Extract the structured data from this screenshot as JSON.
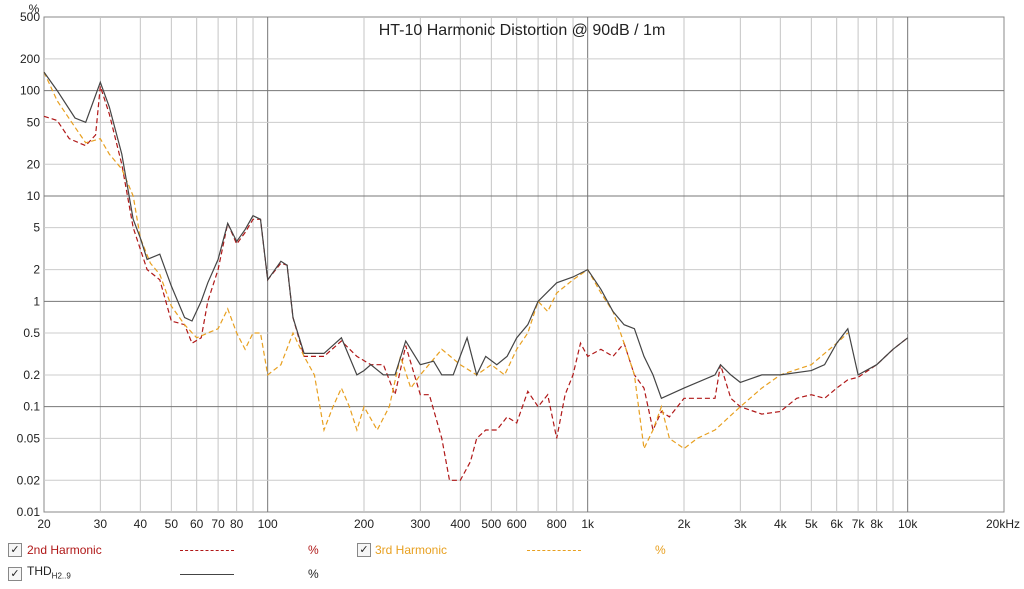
{
  "chart_data": {
    "type": "line",
    "title": "HT-10 Harmonic Distortion @ 90dB / 1m",
    "ylabel": "%",
    "xlabel": "",
    "x_scale": "log",
    "y_scale": "log",
    "xlim": [
      20,
      20000
    ],
    "ylim": [
      0.01,
      500
    ],
    "grid": true,
    "x_ticks": [
      {
        "v": 20,
        "label": "20"
      },
      {
        "v": 30,
        "label": "30"
      },
      {
        "v": 40,
        "label": "40"
      },
      {
        "v": 50,
        "label": "50"
      },
      {
        "v": 60,
        "label": "60"
      },
      {
        "v": 70,
        "label": "70"
      },
      {
        "v": 80,
        "label": "80"
      },
      {
        "v": 100,
        "label": "100"
      },
      {
        "v": 200,
        "label": "200"
      },
      {
        "v": 300,
        "label": "300"
      },
      {
        "v": 400,
        "label": "400"
      },
      {
        "v": 500,
        "label": "500"
      },
      {
        "v": 600,
        "label": "600"
      },
      {
        "v": 800,
        "label": "800"
      },
      {
        "v": 1000,
        "label": "1k"
      },
      {
        "v": 2000,
        "label": "2k"
      },
      {
        "v": 3000,
        "label": "3k"
      },
      {
        "v": 4000,
        "label": "4k"
      },
      {
        "v": 5000,
        "label": "5k"
      },
      {
        "v": 6000,
        "label": "6k"
      },
      {
        "v": 7000,
        "label": "7k"
      },
      {
        "v": 8000,
        "label": "8k"
      },
      {
        "v": 10000,
        "label": "10k"
      },
      {
        "v": 20000,
        "label": "20kHz"
      }
    ],
    "y_ticks": [
      {
        "v": 500,
        "label": "500"
      },
      {
        "v": 200,
        "label": "200"
      },
      {
        "v": 100,
        "label": "100"
      },
      {
        "v": 50,
        "label": "50"
      },
      {
        "v": 20,
        "label": "20"
      },
      {
        "v": 10,
        "label": "10"
      },
      {
        "v": 5,
        "label": "5"
      },
      {
        "v": 2,
        "label": "2"
      },
      {
        "v": 1,
        "label": "1"
      },
      {
        "v": 0.5,
        "label": "0.5"
      },
      {
        "v": 0.2,
        "label": "0.2"
      },
      {
        "v": 0.1,
        "label": "0.1"
      },
      {
        "v": 0.05,
        "label": "0.05"
      },
      {
        "v": 0.02,
        "label": "0.02"
      },
      {
        "v": 0.01,
        "label": "0.01"
      }
    ],
    "series": [
      {
        "name": "2nd Harmonic",
        "color": "#b01818",
        "dash": "5,3",
        "points": [
          [
            20,
            57
          ],
          [
            22,
            52
          ],
          [
            24,
            35
          ],
          [
            27,
            30
          ],
          [
            29,
            38
          ],
          [
            30,
            110
          ],
          [
            32,
            60
          ],
          [
            35,
            20
          ],
          [
            38,
            5
          ],
          [
            42,
            2.0
          ],
          [
            46,
            1.6
          ],
          [
            50,
            0.65
          ],
          [
            55,
            0.6
          ],
          [
            58,
            0.4
          ],
          [
            62,
            0.45
          ],
          [
            65,
            1.0
          ],
          [
            70,
            2.0
          ],
          [
            75,
            5.5
          ],
          [
            80,
            3.5
          ],
          [
            85,
            4.5
          ],
          [
            90,
            6.0
          ],
          [
            95,
            6.0
          ],
          [
            100,
            1.6
          ],
          [
            110,
            2.3
          ],
          [
            115,
            2.2
          ],
          [
            120,
            0.7
          ],
          [
            130,
            0.3
          ],
          [
            150,
            0.3
          ],
          [
            170,
            0.42
          ],
          [
            190,
            0.3
          ],
          [
            210,
            0.25
          ],
          [
            230,
            0.25
          ],
          [
            250,
            0.13
          ],
          [
            270,
            0.38
          ],
          [
            300,
            0.13
          ],
          [
            320,
            0.13
          ],
          [
            350,
            0.05
          ],
          [
            370,
            0.02
          ],
          [
            400,
            0.02
          ],
          [
            430,
            0.03
          ],
          [
            450,
            0.05
          ],
          [
            480,
            0.06
          ],
          [
            520,
            0.06
          ],
          [
            560,
            0.08
          ],
          [
            600,
            0.07
          ],
          [
            650,
            0.14
          ],
          [
            700,
            0.1
          ],
          [
            750,
            0.13
          ],
          [
            800,
            0.05
          ],
          [
            850,
            0.13
          ],
          [
            900,
            0.2
          ],
          [
            950,
            0.4
          ],
          [
            1000,
            0.3
          ],
          [
            1100,
            0.35
          ],
          [
            1200,
            0.3
          ],
          [
            1300,
            0.4
          ],
          [
            1400,
            0.2
          ],
          [
            1500,
            0.15
          ],
          [
            1600,
            0.06
          ],
          [
            1700,
            0.09
          ],
          [
            1800,
            0.08
          ],
          [
            2000,
            0.12
          ],
          [
            2500,
            0.12
          ],
          [
            2600,
            0.25
          ],
          [
            2800,
            0.12
          ],
          [
            3000,
            0.1
          ],
          [
            3500,
            0.085
          ],
          [
            4000,
            0.09
          ],
          [
            4500,
            0.12
          ],
          [
            5000,
            0.13
          ],
          [
            5500,
            0.12
          ],
          [
            6000,
            0.15
          ],
          [
            6500,
            0.18
          ],
          [
            7000,
            0.19
          ],
          [
            8000,
            0.25
          ],
          [
            9000,
            0.35
          ],
          [
            10000,
            0.45
          ]
        ]
      },
      {
        "name": "3rd Harmonic",
        "color": "#e8a020",
        "dash": "5,3",
        "points": [
          [
            20,
            150
          ],
          [
            22,
            80
          ],
          [
            25,
            45
          ],
          [
            27,
            32
          ],
          [
            30,
            35
          ],
          [
            32,
            25
          ],
          [
            35,
            18
          ],
          [
            38,
            10
          ],
          [
            40,
            4
          ],
          [
            43,
            2.3
          ],
          [
            46,
            1.8
          ],
          [
            50,
            0.9
          ],
          [
            55,
            0.6
          ],
          [
            60,
            0.45
          ],
          [
            65,
            0.5
          ],
          [
            70,
            0.55
          ],
          [
            75,
            0.85
          ],
          [
            80,
            0.5
          ],
          [
            85,
            0.35
          ],
          [
            90,
            0.5
          ],
          [
            95,
            0.5
          ],
          [
            100,
            0.2
          ],
          [
            110,
            0.25
          ],
          [
            120,
            0.5
          ],
          [
            130,
            0.3
          ],
          [
            140,
            0.2
          ],
          [
            150,
            0.06
          ],
          [
            160,
            0.1
          ],
          [
            170,
            0.15
          ],
          [
            180,
            0.1
          ],
          [
            190,
            0.06
          ],
          [
            200,
            0.1
          ],
          [
            220,
            0.06
          ],
          [
            240,
            0.1
          ],
          [
            260,
            0.3
          ],
          [
            280,
            0.15
          ],
          [
            300,
            0.2
          ],
          [
            350,
            0.35
          ],
          [
            400,
            0.25
          ],
          [
            450,
            0.2
          ],
          [
            500,
            0.25
          ],
          [
            550,
            0.2
          ],
          [
            600,
            0.35
          ],
          [
            650,
            0.5
          ],
          [
            700,
            1.0
          ],
          [
            750,
            0.8
          ],
          [
            800,
            1.2
          ],
          [
            900,
            1.6
          ],
          [
            1000,
            2.0
          ],
          [
            1100,
            1.2
          ],
          [
            1200,
            0.8
          ],
          [
            1300,
            0.4
          ],
          [
            1400,
            0.2
          ],
          [
            1500,
            0.04
          ],
          [
            1600,
            0.06
          ],
          [
            1700,
            0.1
          ],
          [
            1800,
            0.05
          ],
          [
            2000,
            0.04
          ],
          [
            2200,
            0.05
          ],
          [
            2500,
            0.06
          ],
          [
            3000,
            0.1
          ],
          [
            3500,
            0.15
          ],
          [
            4000,
            0.2
          ],
          [
            5000,
            0.25
          ],
          [
            6000,
            0.4
          ],
          [
            6500,
            0.5
          ]
        ]
      },
      {
        "name": "THD H2..9",
        "color": "#444444",
        "dash": "",
        "points": [
          [
            20,
            150
          ],
          [
            22,
            100
          ],
          [
            25,
            55
          ],
          [
            27,
            50
          ],
          [
            30,
            120
          ],
          [
            32,
            70
          ],
          [
            35,
            25
          ],
          [
            38,
            6
          ],
          [
            40,
            4
          ],
          [
            42,
            2.5
          ],
          [
            46,
            2.8
          ],
          [
            50,
            1.4
          ],
          [
            55,
            0.7
          ],
          [
            58,
            0.65
          ],
          [
            62,
            1.0
          ],
          [
            65,
            1.5
          ],
          [
            70,
            2.5
          ],
          [
            75,
            5.5
          ],
          [
            80,
            3.7
          ],
          [
            85,
            4.8
          ],
          [
            90,
            6.5
          ],
          [
            95,
            6.0
          ],
          [
            100,
            1.6
          ],
          [
            110,
            2.4
          ],
          [
            115,
            2.2
          ],
          [
            120,
            0.7
          ],
          [
            130,
            0.32
          ],
          [
            150,
            0.32
          ],
          [
            170,
            0.45
          ],
          [
            190,
            0.2
          ],
          [
            200,
            0.22
          ],
          [
            210,
            0.25
          ],
          [
            230,
            0.2
          ],
          [
            250,
            0.2
          ],
          [
            270,
            0.42
          ],
          [
            300,
            0.25
          ],
          [
            330,
            0.27
          ],
          [
            350,
            0.2
          ],
          [
            380,
            0.2
          ],
          [
            420,
            0.45
          ],
          [
            450,
            0.2
          ],
          [
            480,
            0.3
          ],
          [
            520,
            0.25
          ],
          [
            560,
            0.3
          ],
          [
            600,
            0.45
          ],
          [
            650,
            0.6
          ],
          [
            700,
            1.0
          ],
          [
            800,
            1.5
          ],
          [
            900,
            1.7
          ],
          [
            1000,
            2.0
          ],
          [
            1100,
            1.3
          ],
          [
            1200,
            0.8
          ],
          [
            1300,
            0.6
          ],
          [
            1400,
            0.55
          ],
          [
            1500,
            0.3
          ],
          [
            1600,
            0.2
          ],
          [
            1700,
            0.12
          ],
          [
            2000,
            0.15
          ],
          [
            2500,
            0.2
          ],
          [
            2600,
            0.25
          ],
          [
            2800,
            0.2
          ],
          [
            3000,
            0.17
          ],
          [
            3500,
            0.2
          ],
          [
            4000,
            0.2
          ],
          [
            5000,
            0.22
          ],
          [
            5500,
            0.25
          ],
          [
            6000,
            0.4
          ],
          [
            6500,
            0.55
          ],
          [
            7000,
            0.2
          ],
          [
            8000,
            0.25
          ],
          [
            9000,
            0.35
          ],
          [
            10000,
            0.45
          ]
        ]
      }
    ]
  },
  "legend": {
    "items": [
      {
        "name": "2nd Harmonic",
        "unit": "%",
        "color": "#b01818",
        "checked": "✓"
      },
      {
        "name": "3rd Harmonic",
        "unit": "%",
        "color": "#e8a020",
        "checked": "✓"
      },
      {
        "name": "THD",
        "sub": "H2..9",
        "unit": "%",
        "color": "#444444",
        "checked": "✓"
      }
    ]
  }
}
